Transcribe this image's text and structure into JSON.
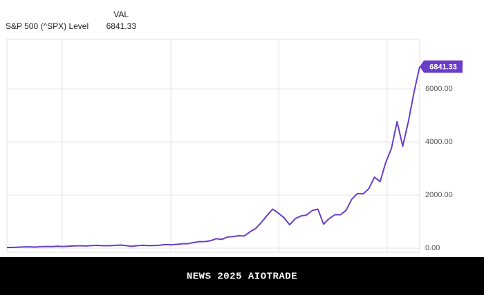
{
  "chart_data": {
    "type": "line",
    "legend_header": "VAL",
    "categories": [
      null,
      null,
      null,
      null,
      null,
      null,
      null,
      null,
      null,
      null,
      null,
      null,
      null,
      null,
      null,
      null,
      null,
      null,
      null,
      null,
      null,
      null,
      null,
      null,
      null,
      null,
      null,
      null,
      null,
      null,
      null,
      null,
      null,
      null,
      null,
      null,
      null,
      null,
      null,
      null,
      null,
      null,
      null,
      null,
      null,
      null,
      null,
      null,
      null,
      null,
      null,
      null,
      null,
      null,
      null,
      null,
      null,
      null,
      null,
      null,
      null,
      null,
      null,
      null,
      null,
      null,
      null,
      null,
      null,
      null,
      null,
      null,
      null,
      null
    ],
    "series": [
      {
        "name": "S&P 500 (^SPX) Level",
        "color": "#6a3dc9",
        "values": [
          26,
          25,
          36,
          45,
          47,
          40,
          55,
          60,
          58,
          72,
          63,
          75,
          85,
          92,
          80,
          96,
          104,
          92,
          92,
          102,
          118,
          97,
          69,
          90,
          107,
          95,
          96,
          108,
          136,
          122,
          141,
          165,
          167,
          211,
          242,
          247,
          278,
          353,
          330,
          417,
          436,
          466,
          459,
          616,
          741,
          970,
          1229,
          1469,
          1320,
          1148,
          880,
          1112,
          1212,
          1248,
          1418,
          1468,
          903,
          1115,
          1258,
          1258,
          1426,
          1848,
          2059,
          2044,
          2239,
          2674,
          2507,
          3231,
          3756,
          4766,
          3840,
          4770,
          5882,
          6841.33
        ]
      }
    ],
    "ylim": [
      -156,
      7870
    ],
    "yticks": [
      {
        "value": 0,
        "label": "0.00"
      },
      {
        "value": 2000,
        "label": "2000.00"
      },
      {
        "value": 4000,
        "label": "4000.00"
      },
      {
        "value": 6000,
        "label": "6000.00"
      }
    ],
    "grid": true,
    "footer": "NEWS 2025 AIOTRADE"
  }
}
